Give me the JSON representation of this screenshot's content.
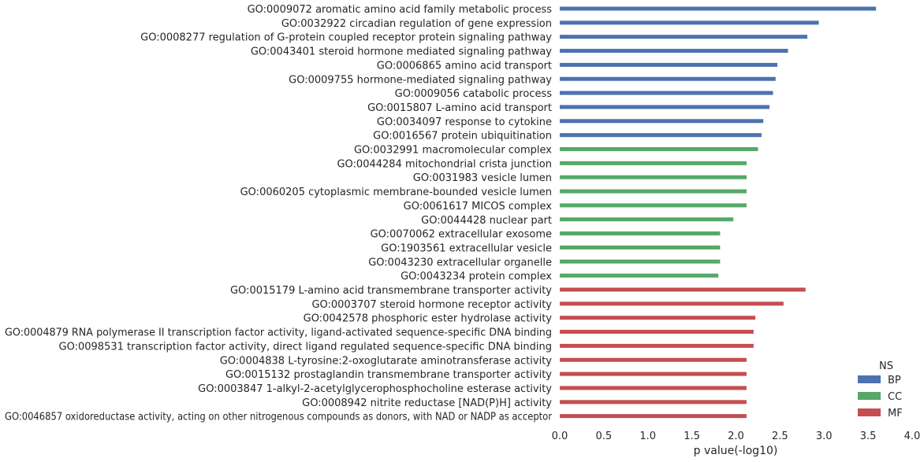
{
  "chart_data": {
    "type": "bar",
    "orientation": "horizontal",
    "xlabel": "p value(-log10)",
    "xlim": [
      0.0,
      4.0
    ],
    "xticks": [
      "0.0",
      "0.5",
      "1.0",
      "1.5",
      "2.0",
      "2.5",
      "3.0",
      "3.5",
      "4.0"
    ],
    "grid": false,
    "legend": {
      "title": "NS",
      "position": "bottom-right",
      "entries": [
        {
          "name": "BP",
          "color": "#4c72b0"
        },
        {
          "name": "CC",
          "color": "#55a868"
        },
        {
          "name": "MF",
          "color": "#c44e52"
        }
      ]
    },
    "bars": [
      {
        "label": "GO:0009072 aromatic amino acid family metabolic process",
        "ns": "BP",
        "value": 3.59
      },
      {
        "label": "GO:0032922 circadian regulation of gene expression",
        "ns": "BP",
        "value": 2.94
      },
      {
        "label": "GO:0008277 regulation of G-protein coupled receptor protein signaling pathway",
        "ns": "BP",
        "value": 2.81
      },
      {
        "label": "GO:0043401 steroid hormone mediated signaling pathway",
        "ns": "BP",
        "value": 2.59
      },
      {
        "label": "GO:0006865 amino acid transport",
        "ns": "BP",
        "value": 2.47
      },
      {
        "label": "GO:0009755 hormone-mediated signaling pathway",
        "ns": "BP",
        "value": 2.45
      },
      {
        "label": "GO:0009056 catabolic process",
        "ns": "BP",
        "value": 2.42
      },
      {
        "label": "GO:0015807 L-amino acid transport",
        "ns": "BP",
        "value": 2.38
      },
      {
        "label": "GO:0034097 response to cytokine",
        "ns": "BP",
        "value": 2.31
      },
      {
        "label": "GO:0016567 protein ubiquitination",
        "ns": "BP",
        "value": 2.29
      },
      {
        "label": "GO:0032991 macromolecular complex",
        "ns": "CC",
        "value": 2.25
      },
      {
        "label": "GO:0044284 mitochondrial crista junction",
        "ns": "CC",
        "value": 2.12
      },
      {
        "label": "GO:0031983 vesicle lumen",
        "ns": "CC",
        "value": 2.12
      },
      {
        "label": "GO:0060205 cytoplasmic membrane-bounded vesicle lumen",
        "ns": "CC",
        "value": 2.12
      },
      {
        "label": "GO:0061617 MICOS complex",
        "ns": "CC",
        "value": 2.12
      },
      {
        "label": "GO:0044428 nuclear part",
        "ns": "CC",
        "value": 1.97
      },
      {
        "label": "GO:0070062 extracellular exosome",
        "ns": "CC",
        "value": 1.82
      },
      {
        "label": "GO:1903561 extracellular vesicle",
        "ns": "CC",
        "value": 1.82
      },
      {
        "label": "GO:0043230 extracellular organelle",
        "ns": "CC",
        "value": 1.82
      },
      {
        "label": "GO:0043234 protein complex",
        "ns": "CC",
        "value": 1.8
      },
      {
        "label": "GO:0015179 L-amino acid transmembrane transporter activity",
        "ns": "MF",
        "value": 2.79
      },
      {
        "label": "GO:0003707 steroid hormone receptor activity",
        "ns": "MF",
        "value": 2.54
      },
      {
        "label": "GO:0042578 phosphoric ester hydrolase activity",
        "ns": "MF",
        "value": 2.22
      },
      {
        "label": "GO:0004879 RNA polymerase II transcription factor activity, ligand-activated sequence-specific DNA binding",
        "ns": "MF",
        "value": 2.2
      },
      {
        "label": "GO:0098531 transcription factor activity, direct ligand regulated sequence-specific DNA binding",
        "ns": "MF",
        "value": 2.2
      },
      {
        "label": "GO:0004838 L-tyrosine:2-oxoglutarate aminotransferase activity",
        "ns": "MF",
        "value": 2.12
      },
      {
        "label": "GO:0015132 prostaglandin transmembrane transporter activity",
        "ns": "MF",
        "value": 2.12
      },
      {
        "label": "GO:0003847 1-alkyl-2-acetylglycerophosphocholine esterase activity",
        "ns": "MF",
        "value": 2.12
      },
      {
        "label": "GO:0008942 nitrite reductase [NAD(P)H] activity",
        "ns": "MF",
        "value": 2.12
      },
      {
        "label": "GO:0046857 oxidoreductase activity, acting on other nitrogenous compounds as donors, with NAD or NADP as acceptor",
        "ns": "MF",
        "value": 2.12
      }
    ]
  }
}
